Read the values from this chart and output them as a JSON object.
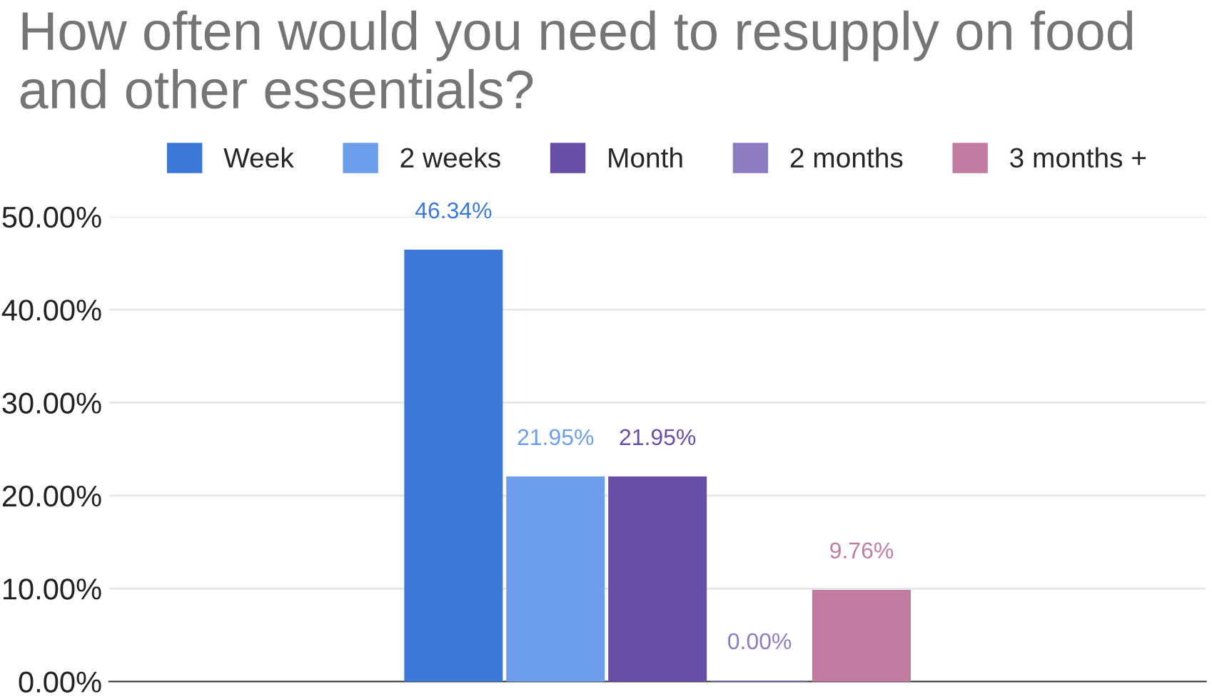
{
  "chart_data": {
    "type": "bar",
    "title": "How often would you need to resupply on food and other essentials?",
    "categories": [
      null
    ],
    "series": [
      {
        "name": "Week",
        "color": "#3c78d8",
        "values": [
          46.34
        ],
        "value_labels": [
          "46.34%"
        ]
      },
      {
        "name": "2 weeks",
        "color": "#6d9eeb",
        "values": [
          21.95
        ],
        "value_labels": [
          "21.95%"
        ]
      },
      {
        "name": "Month",
        "color": "#674ea7",
        "values": [
          21.95
        ],
        "value_labels": [
          "21.95%"
        ]
      },
      {
        "name": "2 months",
        "color": "#8e7cc3",
        "values": [
          0
        ],
        "value_labels": [
          "0.00%"
        ]
      },
      {
        "name": "3 months +",
        "color": "#c27ba0",
        "values": [
          9.76
        ],
        "value_labels": [
          "9.76%"
        ]
      }
    ],
    "ylim": [
      0,
      50
    ],
    "yticks": [
      {
        "value": 0,
        "label": "0.00%"
      },
      {
        "value": 10,
        "label": "10.00%"
      },
      {
        "value": 20,
        "label": "20.00%"
      },
      {
        "value": 30,
        "label": "30.00%"
      },
      {
        "value": 40,
        "label": "40.00%"
      },
      {
        "value": 50,
        "label": "50.00%"
      }
    ],
    "grid": "y",
    "legend": "top"
  }
}
